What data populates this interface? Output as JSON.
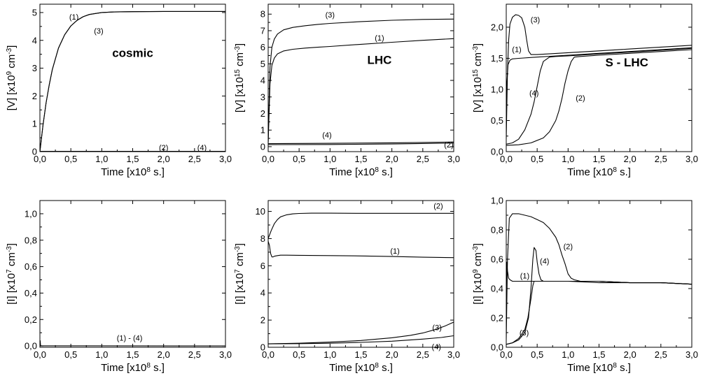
{
  "chart_data": [
    {
      "type": "line",
      "title": "cosmic",
      "xlabel": "Time [x10^8 s.]",
      "ylabel": "[V] [x10^9 cm^-3]",
      "xlim": [
        0,
        3.0
      ],
      "ylim": [
        0,
        5.3
      ],
      "xticks": [
        "0,0",
        "0,5",
        "1,0",
        "1,5",
        "2,0",
        "2,5",
        "3,0"
      ],
      "xtick_values": [
        0,
        0.5,
        1,
        1.5,
        2,
        2.5,
        3
      ],
      "yticks": [
        "0",
        "1",
        "2",
        "3",
        "4",
        "5"
      ],
      "ytick_values": [
        0,
        1,
        2,
        3,
        4,
        5
      ],
      "series": [
        {
          "name": "(1)",
          "x": [
            0,
            0.05,
            0.1,
            0.15,
            0.2,
            0.3,
            0.4,
            0.5,
            0.6,
            0.7,
            0.8,
            1.0,
            1.2,
            1.5,
            2.0,
            2.5,
            3.0
          ],
          "y": [
            0,
            0.95,
            1.75,
            2.4,
            2.95,
            3.72,
            4.2,
            4.52,
            4.72,
            4.85,
            4.93,
            5.0,
            5.02,
            5.03,
            5.04,
            5.04,
            5.04
          ]
        },
        {
          "name": "(3)",
          "x": [
            0,
            0.05,
            0.1,
            0.15,
            0.2,
            0.3,
            0.4,
            0.5,
            0.6,
            0.7,
            0.8,
            1.0,
            1.2,
            1.5,
            2.0,
            2.5,
            3.0
          ],
          "y": [
            0,
            0.95,
            1.75,
            2.4,
            2.95,
            3.72,
            4.2,
            4.52,
            4.72,
            4.85,
            4.93,
            5.0,
            5.02,
            5.03,
            5.04,
            5.04,
            5.04
          ]
        },
        {
          "name": "(2)",
          "x": [
            0,
            3.0
          ],
          "y": [
            0.01,
            0.01
          ]
        },
        {
          "name": "(4)",
          "x": [
            0,
            3.0
          ],
          "y": [
            0.01,
            0.01
          ]
        }
      ],
      "annotations": [
        {
          "text": "(1)",
          "x": 0.55,
          "y": 4.75
        },
        {
          "text": "(3)",
          "x": 0.95,
          "y": 4.25
        },
        {
          "text": "(2)",
          "x": 2.0,
          "y": 0.05
        },
        {
          "text": "(4)",
          "x": 2.62,
          "y": 0.05
        }
      ],
      "title_pos": {
        "x": 1.5,
        "y": 3.4
      }
    },
    {
      "type": "line",
      "title": "LHC",
      "xlabel": "Time [x10^8 s.]",
      "ylabel": "[V] [x10^15 cm^-3]",
      "xlim": [
        0,
        3.0
      ],
      "ylim": [
        -0.3,
        8.6
      ],
      "xticks": [
        "0,0",
        "0,5",
        "1,0",
        "1,5",
        "2,0",
        "2,5",
        "3,0"
      ],
      "xtick_values": [
        0,
        0.5,
        1,
        1.5,
        2,
        2.5,
        3
      ],
      "yticks": [
        "0",
        "1",
        "2",
        "3",
        "4",
        "5",
        "6",
        "7",
        "8"
      ],
      "ytick_values": [
        0,
        1,
        2,
        3,
        4,
        5,
        6,
        7,
        8
      ],
      "series": [
        {
          "name": "(3)",
          "x": [
            0,
            0.03,
            0.06,
            0.1,
            0.15,
            0.25,
            0.4,
            0.6,
            0.8,
            1.0,
            1.5,
            2.0,
            2.5,
            3.0
          ],
          "y": [
            0.3,
            4.8,
            6.0,
            6.5,
            6.8,
            7.05,
            7.2,
            7.3,
            7.38,
            7.44,
            7.55,
            7.63,
            7.68,
            7.7
          ]
        },
        {
          "name": "(1)",
          "x": [
            0,
            0.03,
            0.06,
            0.1,
            0.15,
            0.25,
            0.4,
            0.6,
            0.8,
            1.0,
            1.5,
            2.0,
            2.5,
            3.0
          ],
          "y": [
            0.2,
            3.8,
            4.9,
            5.35,
            5.6,
            5.78,
            5.88,
            5.95,
            6.0,
            6.05,
            6.18,
            6.3,
            6.42,
            6.52
          ]
        },
        {
          "name": "(4)",
          "x": [
            0,
            1.0,
            2.0,
            3.0
          ],
          "y": [
            0.18,
            0.2,
            0.23,
            0.28
          ]
        },
        {
          "name": "(2)",
          "x": [
            0,
            1.0,
            2.0,
            3.0
          ],
          "y": [
            0.12,
            0.13,
            0.16,
            0.22
          ]
        }
      ],
      "annotations": [
        {
          "text": "(3)",
          "x": 1.0,
          "y": 7.8
        },
        {
          "text": "(1)",
          "x": 1.8,
          "y": 6.4
        },
        {
          "text": "(4)",
          "x": 0.95,
          "y": 0.55
        },
        {
          "text": "(2)",
          "x": 2.92,
          "y": -0.05
        }
      ],
      "title_pos": {
        "x": 1.8,
        "y": 5.0
      }
    },
    {
      "type": "line",
      "title": "S - LHC",
      "xlabel": "Time [x10^8 s.]",
      "ylabel": "[V] [x10^15 cm^-3]",
      "xlim": [
        0,
        3.0
      ],
      "ylim": [
        0,
        2.37
      ],
      "xticks": [
        "0,0",
        "0,5",
        "1,0",
        "1,5",
        "2,0",
        "2,5",
        "3,0"
      ],
      "xtick_values": [
        0,
        0.5,
        1,
        1.5,
        2,
        2.5,
        3
      ],
      "yticks": [
        "0,0",
        "0,5",
        "1,0",
        "1,5",
        "2,0"
      ],
      "ytick_values": [
        0,
        0.5,
        1,
        1.5,
        2
      ],
      "series": [
        {
          "name": "(3)",
          "x": [
            0,
            0.02,
            0.04,
            0.06,
            0.1,
            0.15,
            0.2,
            0.25,
            0.3,
            0.33,
            0.36,
            0.4,
            0.5,
            1.0,
            1.5,
            2.0,
            2.5,
            3.0
          ],
          "y": [
            0.2,
            1.3,
            1.8,
            2.05,
            2.16,
            2.2,
            2.19,
            2.15,
            2.0,
            1.8,
            1.62,
            1.56,
            1.56,
            1.59,
            1.62,
            1.65,
            1.68,
            1.71
          ]
        },
        {
          "name": "(1)",
          "x": [
            0,
            0.01,
            0.03,
            0.06,
            0.1,
            0.2,
            0.5,
            1.0,
            1.5,
            2.0,
            2.5,
            3.0
          ],
          "y": [
            0.5,
            1.1,
            1.4,
            1.47,
            1.49,
            1.5,
            1.52,
            1.55,
            1.58,
            1.61,
            1.64,
            1.67
          ]
        },
        {
          "name": "(4)",
          "x": [
            0,
            0.1,
            0.2,
            0.3,
            0.4,
            0.45,
            0.5,
            0.55,
            0.6,
            0.7,
            0.8,
            1.0,
            1.5,
            2.0,
            2.5,
            3.0
          ],
          "y": [
            0.12,
            0.14,
            0.2,
            0.35,
            0.6,
            0.8,
            1.05,
            1.3,
            1.45,
            1.52,
            1.53,
            1.54,
            1.57,
            1.6,
            1.63,
            1.66
          ]
        },
        {
          "name": "(2)",
          "x": [
            0,
            0.2,
            0.4,
            0.6,
            0.7,
            0.8,
            0.85,
            0.9,
            0.95,
            1.0,
            1.05,
            1.1,
            1.2,
            1.5,
            2.0,
            2.5,
            3.0
          ],
          "y": [
            0.1,
            0.11,
            0.14,
            0.22,
            0.32,
            0.5,
            0.65,
            0.85,
            1.1,
            1.3,
            1.45,
            1.52,
            1.53,
            1.55,
            1.58,
            1.61,
            1.64
          ]
        }
      ],
      "annotations": [
        {
          "text": "(3)",
          "x": 0.47,
          "y": 2.08
        },
        {
          "text": "(1)",
          "x": 0.17,
          "y": 1.6
        },
        {
          "text": "(4)",
          "x": 0.45,
          "y": 0.9
        },
        {
          "text": "(2)",
          "x": 1.2,
          "y": 0.82
        }
      ],
      "title_pos": {
        "x": 1.95,
        "y": 1.37
      }
    },
    {
      "type": "line",
      "title": "",
      "xlabel": "Time [x10^8 s.]",
      "ylabel": "[I] [x10^7 cm^-3]",
      "xlim": [
        0,
        3.0
      ],
      "ylim": [
        -0.01,
        1.1
      ],
      "xticks": [
        "0,0",
        "0,5",
        "1,0",
        "1,5",
        "2,0",
        "2,5",
        "3,0"
      ],
      "xtick_values": [
        0,
        0.5,
        1,
        1.5,
        2,
        2.5,
        3
      ],
      "yticks": [
        "0,0",
        "0,2",
        "0,4",
        "0,6",
        "0,8",
        "1,0"
      ],
      "ytick_values": [
        0,
        0.2,
        0.4,
        0.6,
        0.8,
        1.0
      ],
      "series": [
        {
          "name": "(1) - (4)",
          "x": [
            0,
            0.005,
            0.01,
            0.02,
            3.0
          ],
          "y": [
            0.0,
            0.04,
            0.005,
            0.001,
            0.0
          ]
        }
      ],
      "annotations": [
        {
          "text": "(1) - (4)",
          "x": 1.45,
          "y": 0.04
        }
      ]
    },
    {
      "type": "line",
      "title": "",
      "xlabel": "Time [x10^8 s.]",
      "ylabel": "[I] [x10^7 cm^-3]",
      "xlim": [
        0,
        3.0
      ],
      "ylim": [
        0,
        10.8
      ],
      "xticks": [
        "0,0",
        "0,5",
        "1,0",
        "1,5",
        "2,0",
        "2,5",
        "3,0"
      ],
      "xtick_values": [
        0,
        0.5,
        1,
        1.5,
        2,
        2.5,
        3
      ],
      "yticks": [
        "0",
        "2",
        "4",
        "6",
        "8",
        "10"
      ],
      "ytick_values": [
        0,
        2,
        4,
        6,
        8,
        10
      ],
      "series": [
        {
          "name": "(2)",
          "x": [
            0,
            0.05,
            0.1,
            0.15,
            0.2,
            0.3,
            0.4,
            0.5,
            0.7,
            1.0,
            1.5,
            2.0,
            2.5,
            3.0
          ],
          "y": [
            8.0,
            8.6,
            9.1,
            9.4,
            9.6,
            9.75,
            9.82,
            9.85,
            9.87,
            9.87,
            9.86,
            9.86,
            9.86,
            9.86
          ]
        },
        {
          "name": "(1)",
          "x": [
            0,
            0.02,
            0.04,
            0.06,
            0.08,
            0.1,
            0.15,
            0.2,
            0.3,
            0.5,
            1.0,
            1.5,
            2.0,
            2.5,
            3.0
          ],
          "y": [
            7.8,
            7.5,
            6.9,
            6.65,
            6.65,
            6.7,
            6.75,
            6.78,
            6.78,
            6.77,
            6.75,
            6.72,
            6.68,
            6.63,
            6.6
          ]
        },
        {
          "name": "(3)",
          "x": [
            0,
            0.5,
            1.0,
            1.5,
            2.0,
            2.3,
            2.5,
            2.7,
            2.85,
            3.0
          ],
          "y": [
            0.25,
            0.3,
            0.38,
            0.5,
            0.7,
            0.88,
            1.05,
            1.3,
            1.55,
            1.85
          ]
        },
        {
          "name": "(4)",
          "x": [
            0,
            0.5,
            1.0,
            1.5,
            2.0,
            2.5,
            2.8,
            3.0
          ],
          "y": [
            0.25,
            0.27,
            0.3,
            0.36,
            0.45,
            0.6,
            0.72,
            0.85
          ]
        }
      ],
      "annotations": [
        {
          "text": "(2)",
          "x": 2.75,
          "y": 10.2
        },
        {
          "text": "(1)",
          "x": 2.05,
          "y": 6.9
        },
        {
          "text": "(3)",
          "x": 2.73,
          "y": 1.25
        },
        {
          "text": "(4)",
          "x": 2.72,
          "y": -0.15
        }
      ]
    },
    {
      "type": "line",
      "title": "",
      "xlabel": "Time [x10^8 s.]",
      "ylabel": "[I] [x10^9 cm^-3]",
      "xlim": [
        0,
        3.0
      ],
      "ylim": [
        0,
        1.0
      ],
      "xticks": [
        "0,0",
        "0,5",
        "1,0",
        "1,5",
        "2,0",
        "2,5",
        "3,0"
      ],
      "xtick_values": [
        0,
        0.5,
        1,
        1.5,
        2,
        2.5,
        3
      ],
      "yticks": [
        "0,0",
        "0,2",
        "0,4",
        "0,6",
        "0,8",
        "1,0"
      ],
      "ytick_values": [
        0,
        0.2,
        0.4,
        0.6,
        0.8,
        1.0
      ],
      "series": [
        {
          "name": "(2)",
          "x": [
            0,
            0.02,
            0.05,
            0.1,
            0.2,
            0.3,
            0.4,
            0.5,
            0.6,
            0.7,
            0.8,
            0.85,
            0.9,
            0.95,
            1.0,
            1.05,
            1.1,
            1.2,
            1.5,
            2.0,
            2.5,
            3.0
          ],
          "y": [
            0.05,
            0.6,
            0.88,
            0.91,
            0.91,
            0.9,
            0.89,
            0.87,
            0.85,
            0.81,
            0.75,
            0.7,
            0.63,
            0.57,
            0.5,
            0.47,
            0.46,
            0.45,
            0.45,
            0.44,
            0.44,
            0.43
          ]
        },
        {
          "name": "(4)",
          "x": [
            0,
            0.1,
            0.2,
            0.3,
            0.36,
            0.4,
            0.43,
            0.45,
            0.48,
            0.5,
            0.53,
            0.56,
            0.6,
            0.7,
            1.0,
            1.5,
            2.0,
            2.5,
            3.0
          ],
          "y": [
            0.02,
            0.03,
            0.05,
            0.1,
            0.2,
            0.4,
            0.6,
            0.68,
            0.66,
            0.58,
            0.5,
            0.46,
            0.45,
            0.45,
            0.45,
            0.45,
            0.44,
            0.44,
            0.43
          ]
        },
        {
          "name": "(1)",
          "x": [
            0,
            0.01,
            0.02,
            0.04,
            0.06,
            0.1,
            0.3,
            0.5,
            1.0,
            1.5,
            2.0,
            2.5,
            3.0
          ],
          "y": [
            0.3,
            0.58,
            0.52,
            0.47,
            0.46,
            0.45,
            0.45,
            0.45,
            0.45,
            0.44,
            0.44,
            0.44,
            0.43
          ]
        },
        {
          "name": "(3)",
          "x": [
            0,
            0.1,
            0.2,
            0.3,
            0.35,
            0.4,
            0.43,
            0.45,
            0.5,
            1.0,
            1.5,
            2.0,
            2.5,
            3.0
          ],
          "y": [
            0.02,
            0.03,
            0.06,
            0.12,
            0.2,
            0.33,
            0.42,
            0.45,
            0.45,
            0.45,
            0.45,
            0.44,
            0.44,
            0.43
          ]
        }
      ],
      "annotations": [
        {
          "text": "(2)",
          "x": 1.0,
          "y": 0.67
        },
        {
          "text": "(4)",
          "x": 0.62,
          "y": 0.57
        },
        {
          "text": "(1)",
          "x": 0.3,
          "y": 0.47
        },
        {
          "text": "(3)",
          "x": 0.29,
          "y": 0.08
        }
      ]
    }
  ]
}
